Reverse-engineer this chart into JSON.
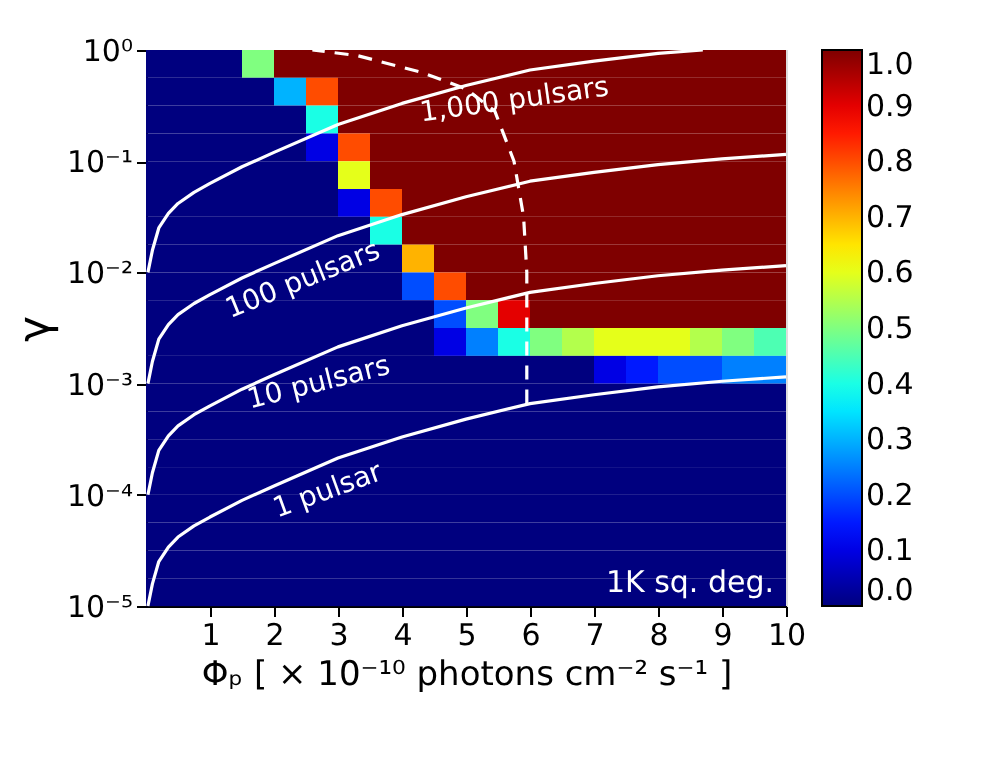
{
  "chart_data": {
    "type": "heatmap",
    "xlabel": "Φₚ [ × 10⁻¹⁰ photons cm⁻² s⁻¹ ]",
    "ylabel": "γ",
    "log": "y",
    "grid": false,
    "xlim": [
      0,
      10
    ],
    "xticks": [
      1,
      2,
      3,
      4,
      5,
      6,
      7,
      8,
      9,
      10
    ],
    "ylim": [
      1e-05,
      1
    ],
    "yticks": [
      {
        "value": 1e-05,
        "label": "10⁻⁵"
      },
      {
        "value": 0.0001,
        "label": "10⁻⁴"
      },
      {
        "value": 0.001,
        "label": "10⁻³"
      },
      {
        "value": 0.01,
        "label": "10⁻²"
      },
      {
        "value": 0.1,
        "label": "10⁻¹"
      },
      {
        "value": 1,
        "label": "10⁰"
      }
    ],
    "x": [
      0.25,
      0.75,
      1.25,
      1.75,
      2.25,
      2.75,
      3.25,
      3.75,
      4.25,
      4.75,
      5.25,
      5.75,
      6.25,
      6.75,
      7.25,
      7.75,
      8.25,
      8.75,
      9.25,
      9.75
    ],
    "y": [
      0.75,
      0.422,
      0.237,
      0.133,
      0.075,
      0.0422,
      0.0237,
      0.0133,
      0.0075,
      0.00422,
      0.00237,
      0.00133,
      0.00075,
      0.000422,
      0.000237,
      0.000133,
      7.5e-05,
      4.22e-05,
      2.37e-05,
      1.33e-05
    ],
    "cells": [
      [
        0,
        0,
        0,
        0.5,
        1,
        1,
        1,
        1,
        1,
        1,
        1,
        1,
        1,
        1,
        1,
        1,
        1,
        1,
        1,
        1
      ],
      [
        0,
        0,
        0,
        0,
        0.3,
        0.8,
        1,
        1,
        1,
        1,
        1,
        1,
        1,
        1,
        1,
        1,
        1,
        1,
        1,
        1
      ],
      [
        0,
        0,
        0,
        0,
        0,
        0.4,
        1,
        1,
        1,
        1,
        1,
        1,
        1,
        1,
        1,
        1,
        1,
        1,
        1,
        1
      ],
      [
        0,
        0,
        0,
        0,
        0,
        0.1,
        0.8,
        1,
        1,
        1,
        1,
        1,
        1,
        1,
        1,
        1,
        1,
        1,
        1,
        1
      ],
      [
        0,
        0,
        0,
        0,
        0,
        0,
        0.6,
        1,
        1,
        1,
        1,
        1,
        1,
        1,
        1,
        1,
        1,
        1,
        1,
        1
      ],
      [
        0,
        0,
        0,
        0,
        0,
        0,
        0.1,
        0.8,
        1,
        1,
        1,
        1,
        1,
        1,
        1,
        1,
        1,
        1,
        1,
        1
      ],
      [
        0,
        0,
        0,
        0,
        0,
        0,
        0,
        0.4,
        1,
        1,
        1,
        1,
        1,
        1,
        1,
        1,
        1,
        1,
        1,
        1
      ],
      [
        0,
        0,
        0,
        0,
        0,
        0,
        0,
        0,
        0.7,
        1,
        1,
        1,
        1,
        1,
        1,
        1,
        1,
        1,
        1,
        1
      ],
      [
        0,
        0,
        0,
        0,
        0,
        0,
        0,
        0,
        0.2,
        0.8,
        1,
        1,
        1,
        1,
        1,
        1,
        1,
        1,
        1,
        1
      ],
      [
        0,
        0,
        0,
        0,
        0,
        0,
        0,
        0,
        0,
        0.2,
        0.5,
        0.9,
        1,
        1,
        1,
        1,
        1,
        1,
        1,
        1
      ],
      [
        0,
        0,
        0,
        0,
        0,
        0,
        0,
        0,
        0,
        0.1,
        0.25,
        0.4,
        0.5,
        0.55,
        0.6,
        0.6,
        0.6,
        0.55,
        0.5,
        0.45
      ],
      [
        0,
        0,
        0,
        0,
        0,
        0,
        0,
        0,
        0,
        0,
        0,
        0,
        0,
        0,
        0.1,
        0.15,
        0.2,
        0.2,
        0.25,
        0.25
      ],
      [
        0,
        0,
        0,
        0,
        0,
        0,
        0,
        0,
        0,
        0,
        0,
        0,
        0,
        0,
        0,
        0,
        0,
        0,
        0,
        0
      ],
      [
        0,
        0,
        0,
        0,
        0,
        0,
        0,
        0,
        0,
        0,
        0,
        0,
        0,
        0,
        0,
        0,
        0,
        0,
        0,
        0
      ],
      [
        0,
        0,
        0,
        0,
        0,
        0,
        0,
        0,
        0,
        0,
        0,
        0,
        0,
        0,
        0,
        0,
        0,
        0,
        0,
        0
      ],
      [
        0,
        0,
        0,
        0,
        0,
        0,
        0,
        0,
        0,
        0,
        0,
        0,
        0,
        0,
        0,
        0,
        0,
        0,
        0,
        0
      ],
      [
        0,
        0,
        0,
        0,
        0,
        0,
        0,
        0,
        0,
        0,
        0,
        0,
        0,
        0,
        0,
        0,
        0,
        0,
        0,
        0
      ],
      [
        0,
        0,
        0,
        0,
        0,
        0,
        0,
        0,
        0,
        0,
        0,
        0,
        0,
        0,
        0,
        0,
        0,
        0,
        0,
        0
      ],
      [
        0,
        0,
        0,
        0,
        0,
        0,
        0,
        0,
        0,
        0,
        0,
        0,
        0,
        0,
        0,
        0,
        0,
        0,
        0,
        0
      ],
      [
        0,
        0,
        0,
        0,
        0,
        0,
        0,
        0,
        0,
        0,
        0,
        0,
        0,
        0,
        0,
        0,
        0,
        0,
        0,
        0
      ]
    ],
    "clim": [
      0,
      1
    ],
    "cticks": [
      {
        "value": 0,
        "label": "0.0"
      },
      {
        "value": 0.1,
        "label": "0.1"
      },
      {
        "value": 0.2,
        "label": "0.2"
      },
      {
        "value": 0.3,
        "label": "0.3"
      },
      {
        "value": 0.4,
        "label": "0.4"
      },
      {
        "value": 0.5,
        "label": "0.5"
      },
      {
        "value": 0.6,
        "label": "0.6"
      },
      {
        "value": 0.7,
        "label": "0.7"
      },
      {
        "value": 0.8,
        "label": "0.8"
      },
      {
        "value": 0.9,
        "label": "0.9"
      },
      {
        "value": 1,
        "label": "1.0"
      }
    ],
    "series": [
      {
        "type": "line",
        "color": "#ffffff",
        "x": [
          0.03,
          0.1,
          0.2,
          0.35,
          0.5,
          0.75,
          1,
          1.5,
          2,
          3,
          4,
          5,
          6,
          7,
          8,
          9,
          10
        ],
        "values": [
          1e-05,
          1.58e-05,
          2.51e-05,
          3.39e-05,
          4.17e-05,
          5.25e-05,
          6.31e-05,
          8.91e-05,
          0.00012,
          0.000214,
          0.000331,
          0.000479,
          0.000661,
          0.000794,
          0.000933,
          0.00105,
          0.00115
        ]
      },
      {
        "type": "line",
        "color": "#ffffff",
        "x": [
          0.03,
          0.1,
          0.2,
          0.35,
          0.5,
          0.75,
          1,
          1.5,
          2,
          3,
          4,
          5,
          6,
          7,
          8,
          9,
          10
        ],
        "values": [
          0.0001,
          0.000158,
          0.000251,
          0.000339,
          0.000417,
          0.000525,
          0.000631,
          0.000891,
          0.0012,
          0.00214,
          0.00331,
          0.00479,
          0.00661,
          0.00794,
          0.00933,
          0.0105,
          0.0115
        ]
      },
      {
        "type": "line",
        "color": "#ffffff",
        "x": [
          0.03,
          0.1,
          0.2,
          0.35,
          0.5,
          0.75,
          1,
          1.5,
          2,
          3,
          4,
          5,
          6,
          7,
          8,
          9,
          10
        ],
        "values": [
          0.001,
          0.00158,
          0.00251,
          0.00339,
          0.00417,
          0.00525,
          0.00631,
          0.00891,
          0.012,
          0.0214,
          0.0331,
          0.0479,
          0.0661,
          0.0794,
          0.0933,
          0.105,
          0.115
        ]
      },
      {
        "type": "line",
        "color": "#ffffff",
        "x": [
          0.03,
          0.1,
          0.2,
          0.35,
          0.5,
          0.75,
          1,
          1.5,
          2,
          3,
          4,
          5,
          6,
          7,
          8,
          8.7
        ],
        "values": [
          0.01,
          0.0158,
          0.0251,
          0.0339,
          0.0417,
          0.0525,
          0.0631,
          0.0891,
          0.12,
          0.214,
          0.331,
          0.479,
          0.661,
          0.794,
          0.933,
          1
        ]
      },
      {
        "type": "line",
        "color": "#ffffff",
        "line_style": "dashed",
        "x": [
          5.95,
          5.95,
          5.9,
          5.75,
          5.45,
          5.0,
          4.3,
          3.3,
          2.6
        ],
        "values": [
          0.000661,
          0.01,
          0.0316,
          0.1,
          0.282,
          0.447,
          0.631,
          0.891,
          1
        ]
      }
    ],
    "annotations": [
      {
        "text": "1 pulsar",
        "x": 2.7,
        "y": 0.00018
      },
      {
        "text": "10 pulsars",
        "x": 2.6,
        "y": 0.0017
      },
      {
        "text": "100 pulsars",
        "x": 2.3,
        "y": 0.014
      },
      {
        "text": "1,000 pulsars",
        "x": 5.7,
        "y": 0.6
      },
      "1K sq. deg."
    ]
  }
}
